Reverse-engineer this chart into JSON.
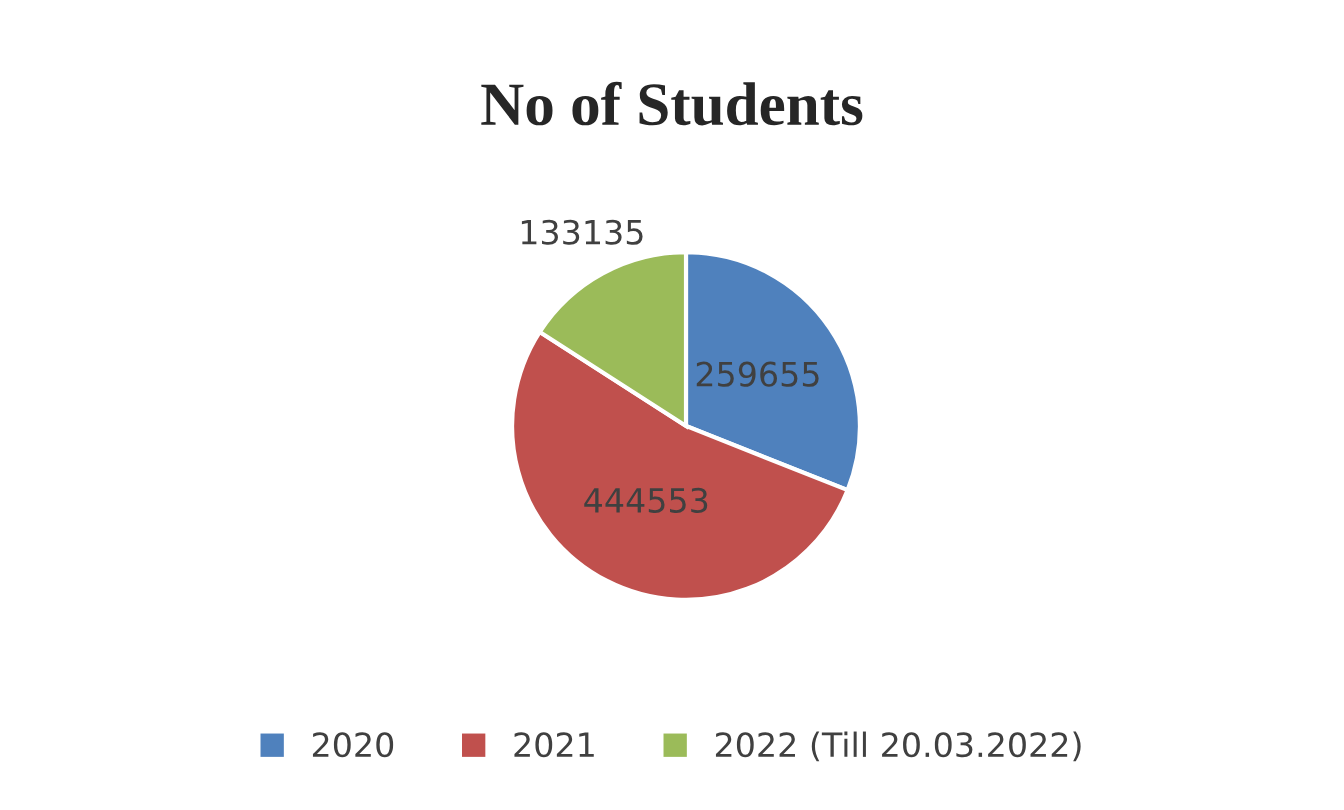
{
  "chart_data": {
    "type": "pie",
    "title": "No of Students",
    "categories": [
      "2020",
      "2021",
      "2022 (Till 20.03.2022)"
    ],
    "values": [
      259655,
      444553,
      133135
    ],
    "colors": [
      "#4f81bd",
      "#c0504d",
      "#9bbb59"
    ],
    "data_labels": true,
    "legend": "bottom"
  }
}
